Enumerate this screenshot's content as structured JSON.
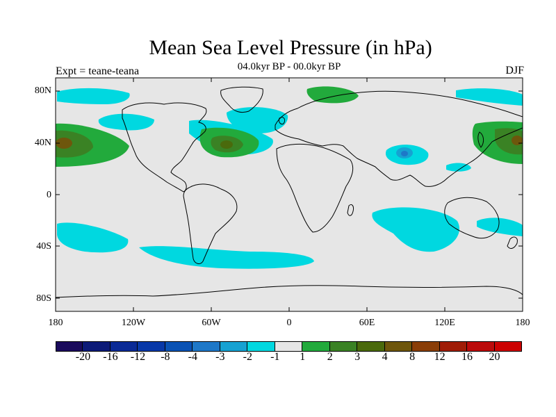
{
  "title": "Mean Sea Level Pressure (in hPa)",
  "subtitle": "04.0kyr BP - 00.0kyr BP",
  "left_label": "Expt = teane-teana",
  "right_label": "DJF",
  "lat_labels": [
    "80N",
    "40N",
    "0",
    "40S",
    "80S"
  ],
  "lon_labels": [
    "180",
    "120W",
    "60W",
    "0",
    "60E",
    "120E",
    "180"
  ],
  "colorbar": {
    "colors": [
      "#1a0a5c",
      "#0c1a78",
      "#0a2a96",
      "#0838a8",
      "#0a52b4",
      "#1e78c8",
      "#16a2d2",
      "#00d8e0",
      "#e6e6e6",
      "#22aa3c",
      "#3a8224",
      "#4a6a0c",
      "#6e560c",
      "#8a3e08",
      "#a01c06",
      "#bb0a0a",
      "#cc0000"
    ],
    "labels": [
      "-20",
      "-16",
      "-12",
      "-8",
      "-4",
      "-3",
      "-2",
      "-1",
      "1",
      "2",
      "3",
      "4",
      "8",
      "12",
      "16",
      "20"
    ]
  },
  "colors": {
    "background": "#e6e6e6",
    "neg1": "#00d8e0",
    "neg2": "#16a2d2",
    "neg3": "#1e78c8",
    "pos1": "#22aa3c",
    "pos2": "#3a8224",
    "pos3": "#6e560c",
    "coast": "#000000"
  }
}
